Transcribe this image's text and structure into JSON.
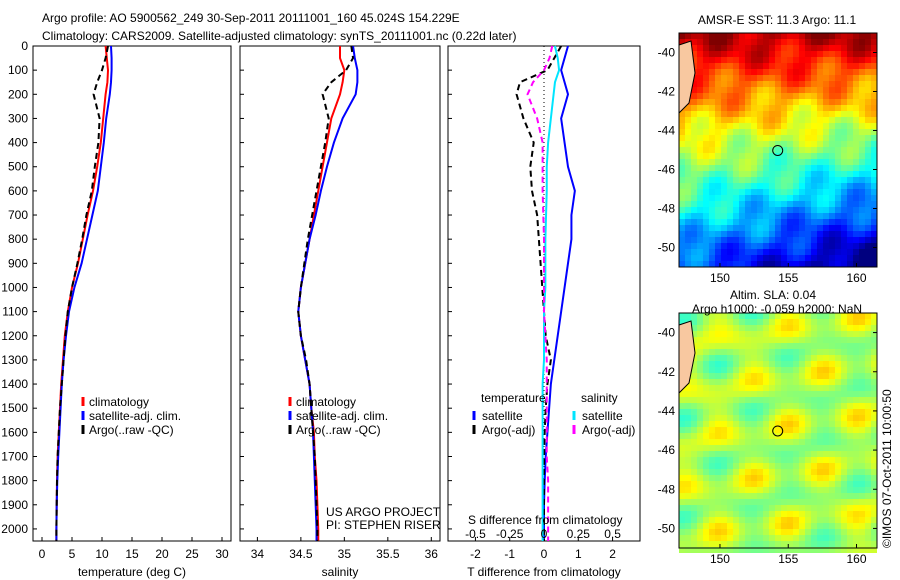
{
  "title_line1": "Argo profile: AO 5900562_249 30-Sep-2011 20111001_160 45.024S 154.229E",
  "title_line2": "Climatology: CARS2009. Satellite-adjusted climatology: synTS_20111001.nc (0.22d later)",
  "credit": "US ARGO PROJECT",
  "pi": "PI: STEPHEN RISER",
  "copyright": "©IMOS 07-Oct-2011 10:00:50",
  "colors": {
    "climatology": "#ff0000",
    "satellite": "#0000ff",
    "argo": "#000000",
    "sal_sat": "#00e5ff",
    "sal_argo": "#ff00ff"
  },
  "chart_data": [
    {
      "type": "line",
      "name": "temperature",
      "xlabel": "temperature (deg C)",
      "xlim": [
        -1.5,
        31.5
      ],
      "ylim": [
        2050,
        0
      ],
      "xticks": [
        0,
        5,
        10,
        15,
        20,
        25,
        30
      ],
      "yticks": [
        0,
        100,
        200,
        300,
        400,
        500,
        600,
        700,
        800,
        900,
        1000,
        1100,
        1200,
        1300,
        1400,
        1500,
        1600,
        1700,
        1800,
        1900,
        2000
      ],
      "legend": [
        "climatology",
        "satellite-adj. clim.",
        "Argo(..raw -QC)"
      ],
      "depth": [
        0,
        50,
        100,
        150,
        200,
        300,
        400,
        500,
        600,
        700,
        800,
        900,
        1000,
        1100,
        1200,
        1300,
        1400,
        1500,
        1600,
        1700,
        1800,
        1900,
        2000,
        2050
      ],
      "series": [
        {
          "name": "climatology",
          "values": [
            10.6,
            10.8,
            11,
            10.9,
            10.6,
            10.2,
            9.8,
            9.2,
            8.5,
            7.6,
            6.8,
            6.0,
            5.0,
            4.3,
            3.8,
            3.5,
            3.2,
            3.0,
            2.8,
            2.6,
            2.5,
            2.45,
            2.4,
            2.4
          ]
        },
        {
          "name": "satellite-adj. clim.",
          "values": [
            11.5,
            11.6,
            11.6,
            11.5,
            11.3,
            10.7,
            10.3,
            9.8,
            9.3,
            8.4,
            7.5,
            6.6,
            5.4,
            4.5,
            4.0,
            3.6,
            3.3,
            3.1,
            2.9,
            2.7,
            2.55,
            2.45,
            2.4,
            2.4
          ]
        },
        {
          "name": "Argo(..raw -QC)",
          "values": [
            11.0,
            10.6,
            10.0,
            9.2,
            8.6,
            9.6,
            9.4,
            8.8,
            8.3,
            7.4,
            6.7,
            5.9,
            5.0,
            4.3,
            3.9,
            3.6,
            3.3,
            3.0,
            2.8,
            2.6,
            2.5,
            2.45,
            2.4,
            2.4
          ]
        }
      ]
    },
    {
      "type": "line",
      "name": "salinity",
      "xlabel": "salinity",
      "xlim": [
        33.8,
        36.1
      ],
      "ylim": [
        2050,
        0
      ],
      "xticks": [
        34,
        34.5,
        35,
        35.5,
        36
      ],
      "legend": [
        "climatology",
        "satellite-adj. clim.",
        "Argo(..raw -QC)"
      ],
      "depth": [
        0,
        50,
        100,
        150,
        200,
        300,
        400,
        500,
        600,
        700,
        800,
        900,
        1000,
        1100,
        1200,
        1300,
        1400,
        1500,
        1600,
        1700,
        1800,
        1900,
        2000,
        2050
      ],
      "series": [
        {
          "name": "climatology",
          "values": [
            34.95,
            34.95,
            35.0,
            34.98,
            34.95,
            34.85,
            34.8,
            34.75,
            34.7,
            34.65,
            34.6,
            34.55,
            34.5,
            34.47,
            34.5,
            34.55,
            34.6,
            34.62,
            34.65,
            34.66,
            34.68,
            34.69,
            34.7,
            34.7
          ]
        },
        {
          "name": "satellite-adj. clim.",
          "values": [
            35.1,
            35.12,
            35.15,
            35.15,
            35.13,
            34.98,
            34.88,
            34.8,
            34.73,
            34.67,
            34.6,
            34.55,
            34.5,
            34.47,
            34.5,
            34.55,
            34.6,
            34.62,
            34.64,
            34.65,
            34.66,
            34.67,
            34.68,
            34.68
          ]
        },
        {
          "name": "Argo(..raw -QC)",
          "values": [
            35.08,
            35.1,
            35.02,
            34.85,
            34.75,
            34.82,
            34.78,
            34.73,
            34.68,
            34.63,
            34.58,
            34.54,
            34.5,
            34.47,
            34.5,
            34.56,
            34.6,
            34.62,
            34.64,
            34.66,
            34.67,
            34.68,
            34.69,
            34.69
          ]
        }
      ]
    },
    {
      "type": "line",
      "name": "difference",
      "xlabel": "T difference from climatology",
      "x2label": "S difference from climatology",
      "xlim": [
        -2.8,
        2.8
      ],
      "x2lim": [
        -0.7,
        0.7
      ],
      "xticks": [
        -2,
        -1,
        0,
        1,
        2
      ],
      "x2ticks": [
        -0.5,
        -0.25,
        0,
        0.25,
        0.5
      ],
      "ylim": [
        2050,
        0
      ],
      "legend_headers": [
        "temperature",
        "salinity"
      ],
      "legend": [
        "satellite",
        "Argo(-adj)",
        "satellite",
        "Argo(-adj)"
      ],
      "depth": [
        0,
        50,
        100,
        150,
        200,
        300,
        400,
        500,
        600,
        700,
        800,
        900,
        1000,
        1100,
        1200,
        1300,
        1400,
        1500,
        1600,
        1700,
        1800,
        1900,
        2000,
        2050
      ],
      "series": [
        {
          "name": "T satellite",
          "axis": "T",
          "values": [
            0.7,
            0.6,
            0.5,
            0.6,
            0.7,
            0.5,
            0.6,
            0.7,
            0.9,
            0.8,
            0.8,
            0.7,
            0.6,
            0.5,
            0.4,
            0.3,
            0.2,
            0.15,
            0.1,
            0.05,
            0.02,
            0.0,
            0.0,
            0.0
          ]
        },
        {
          "name": "T Argo(-adj)",
          "axis": "T",
          "values": [
            0.5,
            0.3,
            0.1,
            -0.7,
            -0.8,
            -0.6,
            -0.3,
            -0.4,
            -0.35,
            -0.2,
            -0.15,
            -0.1,
            -0.05,
            0,
            0.05,
            0.2,
            0.1,
            0.05,
            0.02,
            0.0,
            0.0,
            0.0,
            0.0,
            0.0
          ]
        },
        {
          "name": "S satellite",
          "axis": "S",
          "values": [
            0.08,
            0.1,
            0.11,
            0.08,
            0.07,
            0.05,
            0.03,
            0.02,
            0.02,
            0.015,
            0.01,
            0.01,
            0.01,
            0.0,
            0.0,
            0.0,
            -0.01,
            -0.01,
            -0.01,
            -0.01,
            -0.01,
            -0.01,
            -0.01,
            -0.01
          ]
        },
        {
          "name": "S Argo(-adj)",
          "axis": "S",
          "values": [
            0.06,
            0.04,
            0.0,
            -0.08,
            -0.12,
            -0.05,
            -0.01,
            -0.01,
            -0.01,
            -0.005,
            0.0,
            0.0,
            0.0,
            0.0,
            0.01,
            0.02,
            0.02,
            0.02,
            0.02,
            0.02,
            0.03,
            0.03,
            0.03,
            0.03
          ]
        }
      ]
    },
    {
      "type": "heatmap",
      "name": "sst-map",
      "title": "AMSR-E SST: 11.3 Argo: 11.1",
      "xlim": [
        147,
        161.5
      ],
      "ylim": [
        -51,
        -39
      ],
      "xticks": [
        150,
        155,
        160
      ],
      "yticks": [
        -40,
        -42,
        -44,
        -46,
        -48,
        -50
      ],
      "argo_position": [
        154.229,
        -45.024
      ]
    },
    {
      "type": "heatmap",
      "name": "sla-map",
      "title_line1": "Altim. SLA: 0.04",
      "title_line2": "Argo h1000: -0.059 h2000: NaN",
      "xlim": [
        147,
        161.5
      ],
      "ylim": [
        -51,
        -39
      ],
      "xticks": [
        150,
        155,
        160
      ],
      "yticks": [
        -40,
        -42,
        -44,
        -46,
        -48,
        -50
      ],
      "argo_position": [
        154.229,
        -45.024
      ]
    }
  ]
}
